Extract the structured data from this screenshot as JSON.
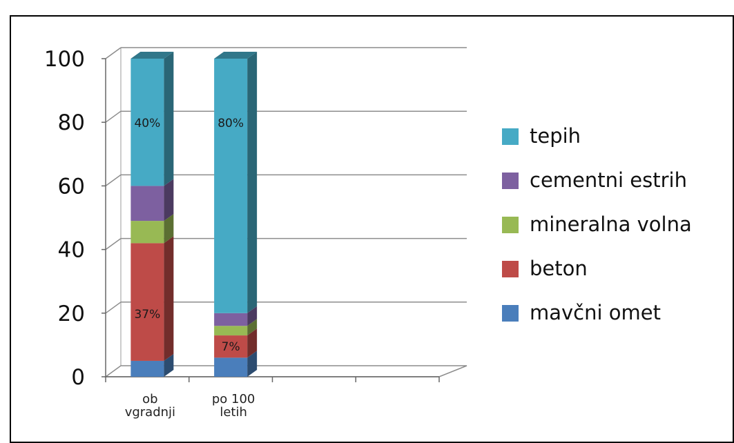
{
  "chart_data": {
    "type": "bar",
    "stacked": true,
    "three_d": true,
    "categories": [
      "ob vgradnji",
      "po 100 letih"
    ],
    "category_lines": [
      [
        "ob",
        "vgradnji"
      ],
      [
        "po 100",
        "letih"
      ]
    ],
    "series": [
      {
        "name": "mavčni omet",
        "color": "#4a7ebb",
        "values": [
          5,
          6
        ]
      },
      {
        "name": "beton",
        "color": "#be4b48",
        "values": [
          37,
          7
        ]
      },
      {
        "name": "mineralna volna",
        "color": "#98b954",
        "values": [
          7,
          3
        ]
      },
      {
        "name": "cementni estrih",
        "color": "#7d60a0",
        "values": [
          11,
          4
        ]
      },
      {
        "name": "tepih",
        "color": "#46aac5",
        "values": [
          40,
          80
        ]
      }
    ],
    "data_labels": [
      {
        "category": 0,
        "series": "tepih",
        "text": "40%"
      },
      {
        "category": 0,
        "series": "beton",
        "text": "37%"
      },
      {
        "category": 1,
        "series": "tepih",
        "text": "80%"
      },
      {
        "category": 1,
        "series": "beton",
        "text": "7%"
      }
    ],
    "y_ticks": [
      "0",
      "20",
      "40",
      "60",
      "80",
      "100"
    ],
    "ylim": [
      0,
      100
    ],
    "grid": true,
    "legend_position": "right",
    "legend_order": [
      "tepih",
      "cementni estrih",
      "mineralna volna",
      "beton",
      "mavčni omet"
    ]
  }
}
